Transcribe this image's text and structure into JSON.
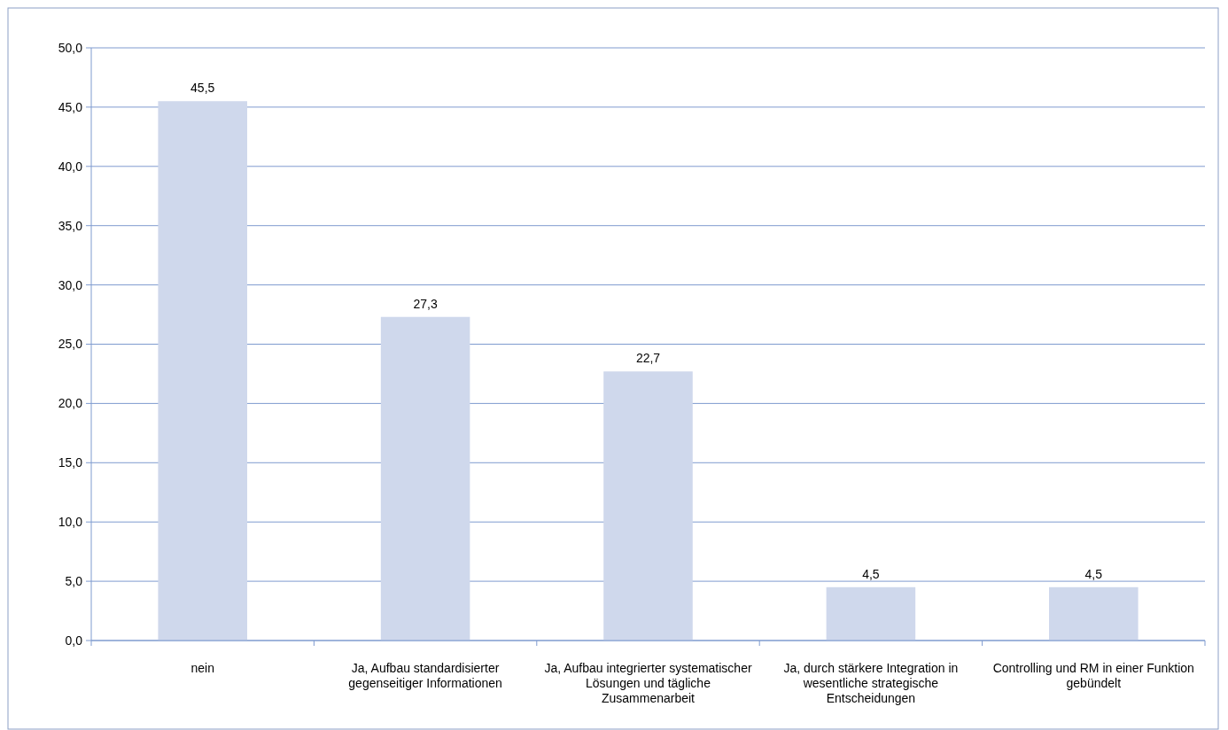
{
  "chart_data": {
    "type": "bar",
    "categories": [
      "nein",
      "Ja, Aufbau standardisierter gegenseitiger Informationen",
      "Ja, Aufbau integrierter systematischer Lösungen und tägliche Zusammenarbeit",
      "Ja, durch stärkere Integration in wesentliche strategische Entscheidungen",
      "Controlling und RM in einer Funktion gebündelt"
    ],
    "values": [
      45.5,
      27.3,
      22.7,
      4.5,
      4.5
    ],
    "value_labels": [
      "45,5",
      "27,3",
      "22,7",
      "4,5",
      "4,5"
    ],
    "color": "#cfd8ec",
    "ylim": [
      0,
      50
    ],
    "yticks": [
      {
        "value": 0,
        "label": "0,0"
      },
      {
        "value": 5,
        "label": "5,0"
      },
      {
        "value": 10,
        "label": "10,0"
      },
      {
        "value": 15,
        "label": "15,0"
      },
      {
        "value": 20,
        "label": "20,0"
      },
      {
        "value": 25,
        "label": "25,0"
      },
      {
        "value": 30,
        "label": "30,0"
      },
      {
        "value": 35,
        "label": "35,0"
      },
      {
        "value": 40,
        "label": "40,0"
      },
      {
        "value": 45,
        "label": "45,0"
      },
      {
        "value": 50,
        "label": "50,0"
      }
    ],
    "grid": "y"
  }
}
